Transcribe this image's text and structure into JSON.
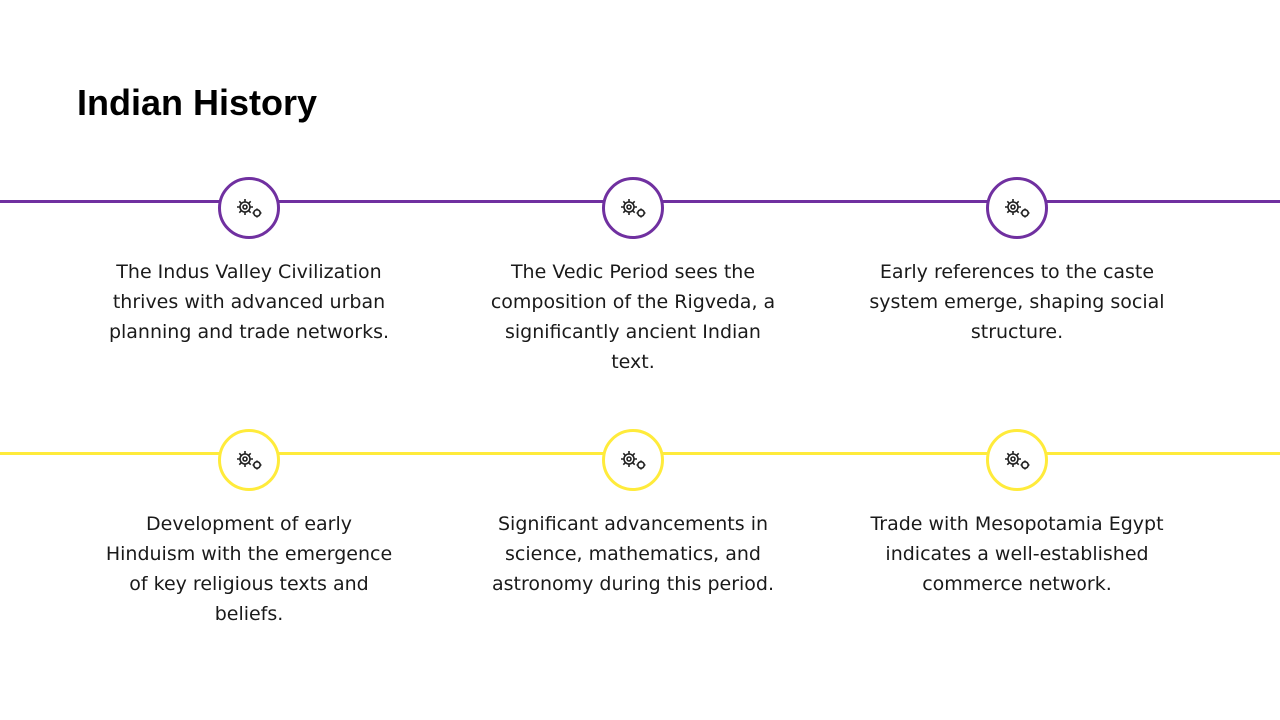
{
  "slide": {
    "title": "Indian History"
  },
  "colors": {
    "row1_accent": "#7030a0",
    "row2_accent": "#ffeb3b",
    "background": "#ffffff",
    "text": "#1a1a1a"
  },
  "rows": [
    {
      "accent": "purple",
      "items": [
        {
          "icon": "gears-icon",
          "text": "The Indus Valley Civilization thrives with advanced urban planning and trade networks."
        },
        {
          "icon": "gears-icon",
          "text": "The Vedic Period sees the composition of the Rigveda, a significantly ancient Indian text."
        },
        {
          "icon": "gears-icon",
          "text": "Early references to the caste system emerge, shaping social structure."
        }
      ]
    },
    {
      "accent": "yellow",
      "items": [
        {
          "icon": "gears-icon",
          "text": "Development of early Hinduism with the emergence of key religious texts and beliefs."
        },
        {
          "icon": "gears-icon",
          "text": "Significant advancements in science, mathematics, and astronomy during this period."
        },
        {
          "icon": "gears-icon",
          "text": "Trade with Mesopotamia Egypt indicates a well-established commerce network."
        }
      ]
    }
  ]
}
